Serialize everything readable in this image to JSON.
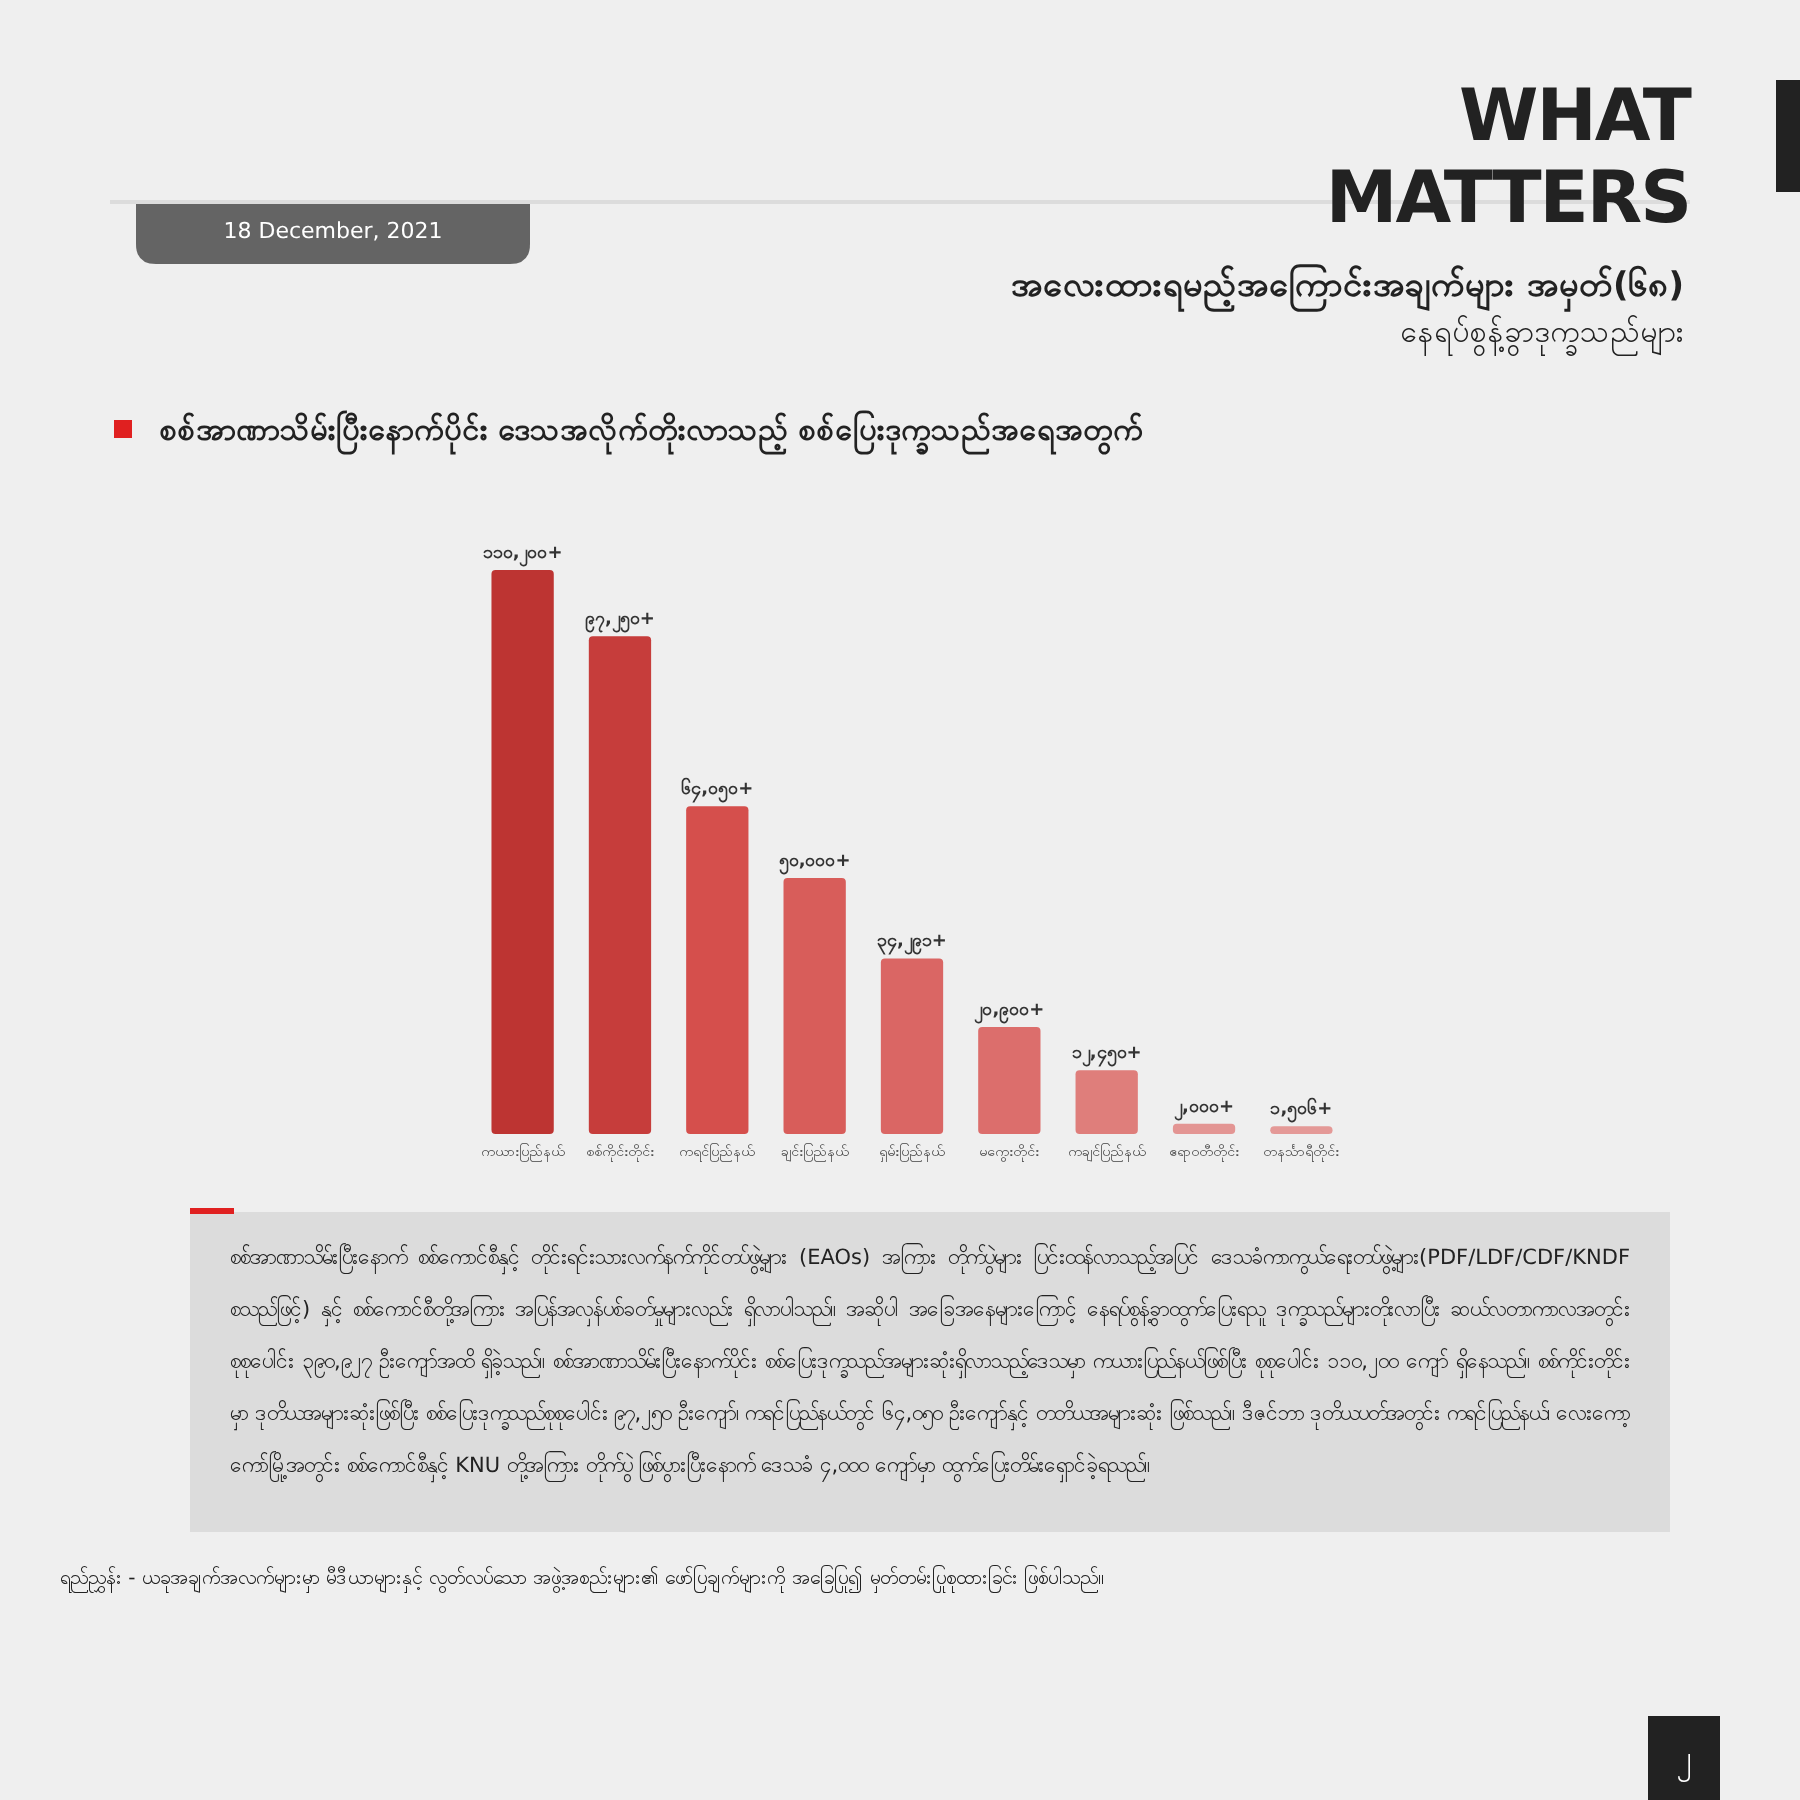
{
  "chart_data": {
    "type": "bar",
    "title": "စစ်အာဏာသိမ်းပြီးနောက်ပိုင်း ဒေသအလိုက်တိုးလာသည့် စစ်ပြေးဒုက္ခသည်အရေအတွက်",
    "subtitle": "အလေးထားရမည့်အကြောင်းအချက်များ အမှတ်(၆၈)",
    "categories": [
      "ကယားပြည်နယ်",
      "စစ်ကိုင်းတိုင်း",
      "ကရင်ပြည်နယ်",
      "ချင်းပြည်နယ်",
      "ရှမ်းပြည်နယ်",
      "မကွေးတိုင်း",
      "ကချင်ပြည်နယ်",
      "ဧရာဝတီတိုင်း",
      "တနင်္သာရီတိုင်း"
    ],
    "values": [
      110200,
      97250,
      64050,
      50000,
      34291,
      20900,
      12450,
      2000,
      1506
    ],
    "value_labels": [
      "၁၁၀,၂၀၀+",
      "၉၇,၂၅၀+",
      "၆၄,၀၅၀+",
      "၅၀,၀၀၀+",
      "၃၄,၂၉၁+",
      "၂၀,၉၀၀+",
      "၁၂,၄၅၀+",
      "၂,၀၀၀+",
      "၁,၅၀၆+"
    ],
    "colors": [
      "#bd3432",
      "#c63d3b",
      "#d54f4c",
      "#d85d5a",
      "#da6664",
      "#dc6e6c",
      "#df7e7b",
      "#e39593",
      "#e49997"
    ],
    "annotations": [
      "WHAT MATTERS",
      "18 December, 2021",
      "နေရပ်စွန့်ခွာဒုက္ခသည်များ",
      "စစ်အာဏာသိမ်းပြီးနောက် စစ်ကောင်စီနှင့် တိုင်းရင်းသားလက်နက်ကိုင်တပ်ဖွဲ့များ (EAOs) အကြား တိုက်ပွဲများ ပြင်းထန်လာသည့်အပြင် ဒေသခံကာကွယ်ရေးတပ်ဖွဲ့များ(PDF/LDF/CDF/KNDF စသည်ဖြင့်) နှင့် စစ်ကောင်စီတို့အကြား အပြန်အလှန်ပစ်ခတ်မှုများလည်း ရှိလာပါသည်။ အဆိုပါ အခြေအနေများကြောင့် နေရပ်စွန့်ခွာထွက်ပြေးရသူ ဒုက္ခသည်များတိုးလာပြီး ဆယ်လတာကာလအတွင်း စုစုပေါင်း ၃၉၀,၉၂၇ ဦးကျော်အထိ ရှိခဲ့သည်။ စစ်အာဏာသိမ်းပြီးနောက်ပိုင်း စစ်ပြေးဒုက္ခသည်အများဆုံးရှိလာသည့်ဒေသမှာ ကယားပြည်နယ်ဖြစ်ပြီး စုစုပေါင်း ၁၁၀,၂၀၀ ကျော် ရှိနေသည်။ စစ်ကိုင်းတိုင်းမှာ ဒုတိယအများဆုံးဖြစ်ပြီး စစ်ပြေးဒုက္ခသည်စုစုပေါင်း ၉၇,၂၅၀ ဦးကျော်၊ ကရင်ပြည်နယ်တွင် ၆၄,၀၅၀ ဦးကျော်နှင့် တတိယအများဆုံး ဖြစ်သည်။ ဒီဇင်ဘာ ဒုတိယပတ်အတွင်း ကရင်ပြည်နယ်၊ လေးကော့ကော်မြို့အတွင်း စစ်ကောင်စီနှင့် KNU တို့အကြား တိုက်ပွဲ ဖြစ်ပွားပြီးနောက် ဒေသခံ ၄,၀၀၀ ကျော်မှာ ထွက်ပြေးတိမ်းရှောင်ခဲ့ရသည်။",
      "ရည်ညွှန်း - ယခုအချက်အလက်များမှာ မီဒီယာများနှင့် လွတ်လပ်သော အဖွဲ့အစည်းများ၏ ဖော်ပြချက်များကို အခြေပြု၍ မှတ်တမ်းပြုစုထားခြင်း ဖြစ်ပါသည်။",
      "၂"
    ]
  }
}
